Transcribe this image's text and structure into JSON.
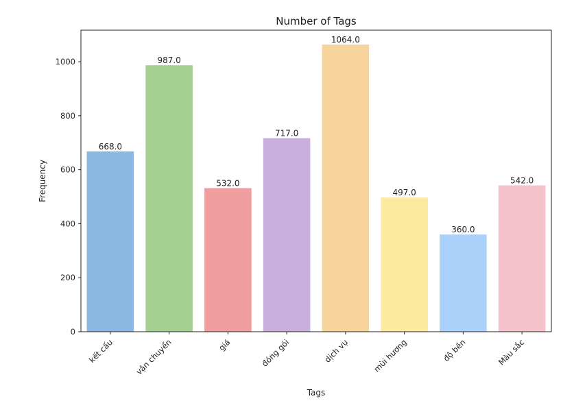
{
  "chart_data": {
    "type": "bar",
    "title": "Number of Tags",
    "xlabel": "Tags",
    "ylabel": "Frequency",
    "categories": [
      "kết cấu",
      "vận chuyển",
      "giá",
      "đóng gói",
      "dịch vụ",
      "mùi hương",
      "độ bền",
      "Màu sắc"
    ],
    "values": [
      668,
      987,
      532,
      717,
      1064,
      497,
      360,
      542
    ],
    "value_labels": [
      "668.0",
      "987.0",
      "532.0",
      "717.0",
      "1064.0",
      "497.0",
      "360.0",
      "542.0"
    ],
    "colors": [
      "#8ab8e2",
      "#a6d092",
      "#f19ea0",
      "#c9b0dc",
      "#f6d49c",
      "#fcea9f",
      "#aad1fa",
      "#f5c2cb"
    ],
    "yticks": [
      0,
      200,
      400,
      600,
      800,
      1000
    ],
    "ylim": [
      0,
      1117
    ],
    "grid": false,
    "legend": false
  }
}
